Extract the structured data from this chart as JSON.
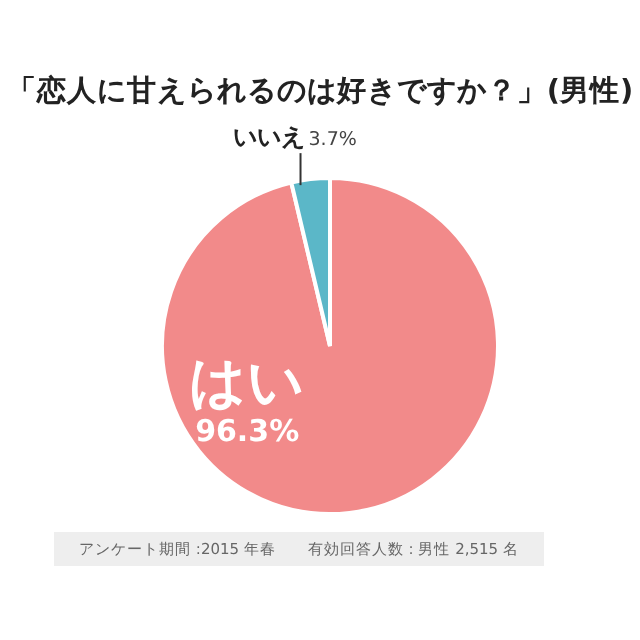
{
  "chart_data": {
    "type": "pie",
    "title": "「恋人に甘えられるのは好きですか？」(男性)",
    "categories": [
      "はい",
      "いいえ"
    ],
    "values": [
      96.3,
      3.7
    ],
    "value_labels": [
      "96.3%",
      "3.7%"
    ],
    "colors": [
      "#f28a8a",
      "#5bb7c8"
    ],
    "annotations": [
      "アンケート期間 :2015 年春　　有効回答人数 : 男性 2,515 名"
    ],
    "legend": false
  }
}
